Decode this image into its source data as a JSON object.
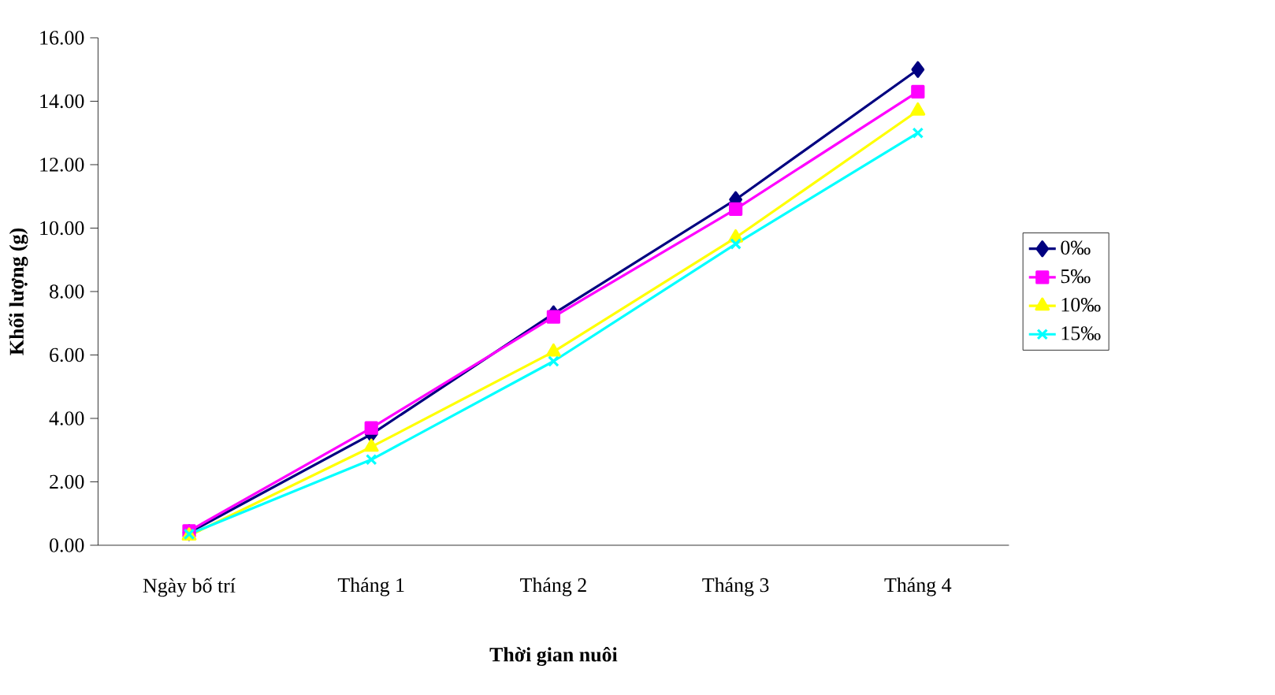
{
  "chart_data": {
    "type": "line",
    "xlabel": "Thời gian nuôi",
    "ylabel": "Khối lượng (g)",
    "categories": [
      "Ngày bố trí",
      "Tháng 1",
      "Tháng 2",
      "Tháng 3",
      "Tháng 4"
    ],
    "ylim": [
      0,
      16
    ],
    "yticks": [
      {
        "value": 0,
        "label": "0.00"
      },
      {
        "value": 2,
        "label": "2.00"
      },
      {
        "value": 4,
        "label": "4.00"
      },
      {
        "value": 6,
        "label": "6.00"
      },
      {
        "value": 8,
        "label": "8.00"
      },
      {
        "value": 10,
        "label": "10.00"
      },
      {
        "value": 12,
        "label": "12.00"
      },
      {
        "value": 14,
        "label": "14.00"
      },
      {
        "value": 16,
        "label": "16.00"
      }
    ],
    "grid": false,
    "legend": "right",
    "series": [
      {
        "name": "0‰",
        "color": "#000080",
        "marker": "diamond",
        "values": [
          0.4,
          3.5,
          7.3,
          10.9,
          15.0
        ]
      },
      {
        "name": "5‰",
        "color": "#ff00ff",
        "marker": "square",
        "values": [
          0.45,
          3.7,
          7.2,
          10.6,
          14.3
        ]
      },
      {
        "name": "10‰",
        "color": "#ffff00",
        "marker": "triangle",
        "values": [
          0.3,
          3.1,
          6.1,
          9.7,
          13.7
        ]
      },
      {
        "name": "15‰",
        "color": "#00ffff",
        "marker": "cross",
        "values": [
          0.35,
          2.7,
          5.8,
          9.5,
          13.0
        ]
      }
    ]
  }
}
